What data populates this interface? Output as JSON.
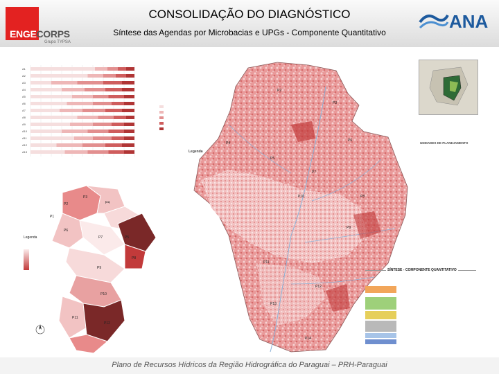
{
  "header": {
    "title": "CONSOLIDAÇÃO DO DIAGNÓSTICO",
    "subtitle": "Síntese das Agendas por Microbacias e UPGs - Componente Quantitativo",
    "logo_left_a": "ENGE",
    "logo_left_b": "CORPS",
    "logo_left_sub": "Grupo TYPSA",
    "logo_right": "ANA"
  },
  "footer": {
    "text": "Plano de Recursos Hídricos da Região Hidrográfica do Paraguai – PRH-Paraguai"
  },
  "bar_chart": {
    "categories": [
      "A1",
      "A2",
      "A3",
      "A4",
      "A5",
      "A6",
      "A7",
      "A8",
      "A9",
      "A10",
      "A11",
      "A12",
      "A13"
    ],
    "series_values": [
      [
        0.62,
        0.12,
        0.1,
        0.08,
        0.08
      ],
      [
        0.55,
        0.15,
        0.12,
        0.1,
        0.08
      ],
      [
        0.2,
        0.25,
        0.25,
        0.18,
        0.12
      ],
      [
        0.3,
        0.22,
        0.2,
        0.16,
        0.12
      ],
      [
        0.4,
        0.2,
        0.15,
        0.15,
        0.1
      ],
      [
        0.35,
        0.25,
        0.18,
        0.12,
        0.1
      ],
      [
        0.28,
        0.22,
        0.22,
        0.16,
        0.12
      ],
      [
        0.45,
        0.2,
        0.15,
        0.12,
        0.08
      ],
      [
        0.38,
        0.22,
        0.18,
        0.12,
        0.1
      ],
      [
        0.3,
        0.25,
        0.2,
        0.15,
        0.1
      ],
      [
        0.42,
        0.18,
        0.18,
        0.12,
        0.1
      ],
      [
        0.25,
        0.25,
        0.22,
        0.16,
        0.12
      ],
      [
        0.33,
        0.22,
        0.2,
        0.15,
        0.1
      ]
    ],
    "colors": [
      "#f5dede",
      "#eeb7b7",
      "#e28f8f",
      "#cf5d5d",
      "#b03535"
    ]
  },
  "small_map": {
    "labels": [
      "P1",
      "P2",
      "P3",
      "P4",
      "P5",
      "P6",
      "P7",
      "P8",
      "P9",
      "P10",
      "P11",
      "P12"
    ]
  },
  "main_map": {
    "labels": [
      "P2",
      "P3",
      "P4",
      "P5",
      "P6",
      "P7",
      "P8",
      "P9",
      "P10",
      "P11",
      "P12",
      "P13",
      "P14"
    ]
  },
  "colors": {
    "header_bg": "#dcdcdc",
    "map_low": "#f7d6d6",
    "map_mid": "#e88a8a",
    "map_high": "#c23a3a",
    "map_darkest": "#7a2828",
    "table_agenda1": "#f2a65a",
    "table_agenda2": "#9ed07a",
    "table_agenda3": "#e6cf5a",
    "table_agenda4": "#b9b9b9",
    "table_agenda5": "#a7c4e8",
    "table_agenda6": "#6f8fcf"
  }
}
